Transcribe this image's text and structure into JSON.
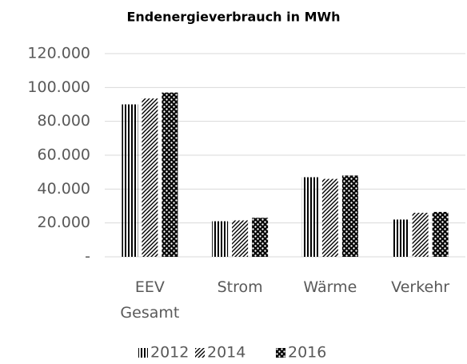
{
  "chart_data": {
    "type": "bar",
    "title": "Endenergieverbrauch in MWh",
    "categories": [
      "EEV Gesamt",
      "Strom",
      "Wärme",
      "Verkehr"
    ],
    "series": [
      {
        "name": "2012",
        "color": "#000000",
        "pattern": "vertical",
        "values": [
          90000,
          21000,
          47000,
          22000
        ]
      },
      {
        "name": "2014",
        "color": "#000000",
        "pattern": "diagonal",
        "values": [
          93500,
          21500,
          46000,
          26000
        ]
      },
      {
        "name": "2016",
        "color": "#000000",
        "pattern": "checker",
        "values": [
          97000,
          23000,
          48000,
          26500
        ]
      }
    ],
    "ylim": [
      0,
      120000
    ],
    "yticks": [
      {
        "value": 0,
        "label": "-"
      },
      {
        "value": 20000,
        "label": "20.000"
      },
      {
        "value": 40000,
        "label": "40.000"
      },
      {
        "value": 60000,
        "label": "60.000"
      },
      {
        "value": 80000,
        "label": "80.000"
      },
      {
        "value": 100000,
        "label": "100.000"
      },
      {
        "value": 120000,
        "label": "120.000"
      }
    ],
    "grid": true,
    "legend": "bottom"
  }
}
